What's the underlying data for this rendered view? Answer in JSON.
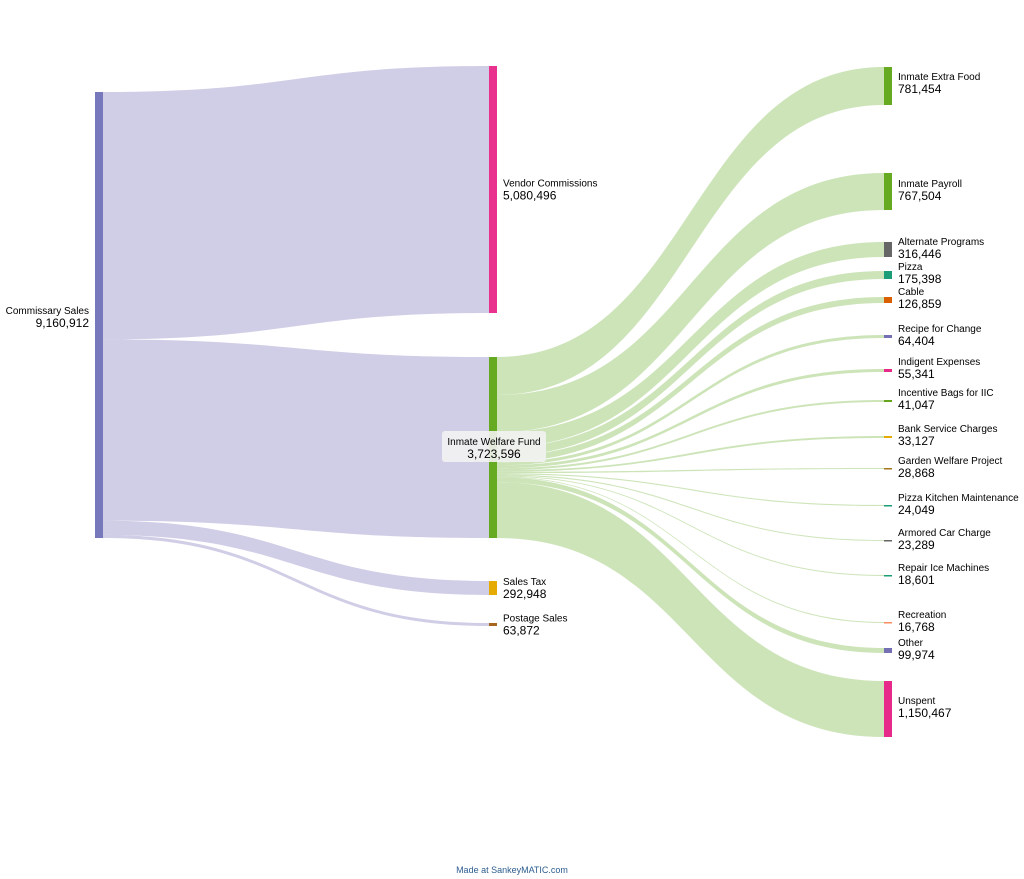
{
  "colors": {
    "flow_commissary": "#b7b2d8",
    "flow_welfare": "#acd28a",
    "label_box_bg": "#f2f2f2"
  },
  "nodes": [
    {
      "id": "commissary",
      "name": "Commissary Sales",
      "value": "9,160,912",
      "color": "#7777bb"
    },
    {
      "id": "vendor",
      "name": "Vendor Commissions",
      "value": "5,080,496",
      "color": "#e8328e"
    },
    {
      "id": "welfare",
      "name": "Inmate Welfare Fund",
      "value": "3,723,596",
      "color": "#66aa22"
    },
    {
      "id": "salestax",
      "name": "Sales Tax",
      "value": "292,948",
      "color": "#e6ab02"
    },
    {
      "id": "postage",
      "name": "Postage Sales",
      "value": "63,872",
      "color": "#a6661d"
    },
    {
      "id": "extrafood",
      "name": "Inmate Extra Food",
      "value": "781,454",
      "color": "#66aa22"
    },
    {
      "id": "payroll",
      "name": "Inmate Payroll",
      "value": "767,504",
      "color": "#66aa22"
    },
    {
      "id": "altprog",
      "name": "Alternate Programs",
      "value": "316,446",
      "color": "#666666"
    },
    {
      "id": "pizza",
      "name": "Pizza",
      "value": "175,398",
      "color": "#1b9e77"
    },
    {
      "id": "cable",
      "name": "Cable",
      "value": "126,859",
      "color": "#d95f02"
    },
    {
      "id": "recipe",
      "name": "Recipe for Change",
      "value": "64,404",
      "color": "#7570b3"
    },
    {
      "id": "indigent",
      "name": "Indigent Expenses",
      "value": "55,341",
      "color": "#e7298a"
    },
    {
      "id": "bags",
      "name": "Incentive Bags for IIC",
      "value": "41,047",
      "color": "#66a61e"
    },
    {
      "id": "bank",
      "name": "Bank Service Charges",
      "value": "33,127",
      "color": "#e6ab02"
    },
    {
      "id": "garden",
      "name": "Garden Welfare Project",
      "value": "28,868",
      "color": "#a6761d"
    },
    {
      "id": "pizzakitchen",
      "name": "Pizza Kitchen Maintenance",
      "value": "24,049",
      "color": "#1b9e77"
    },
    {
      "id": "armored",
      "name": "Armored Car Charge",
      "value": "23,289",
      "color": "#666666"
    },
    {
      "id": "icemachines",
      "name": "Repair Ice Machines",
      "value": "18,601",
      "color": "#1b9e77"
    },
    {
      "id": "recreation",
      "name": "Recreation",
      "value": "16,768",
      "color": "#fc8d62"
    },
    {
      "id": "other",
      "name": "Other",
      "value": "99,974",
      "color": "#7570b3"
    },
    {
      "id": "unspent",
      "name": "Unspent",
      "value": "1,150,467",
      "color": "#e7298a"
    }
  ],
  "flows": [
    {
      "from": "commissary",
      "to": "vendor",
      "value": 5080496
    },
    {
      "from": "commissary",
      "to": "welfare",
      "value": 3723596
    },
    {
      "from": "commissary",
      "to": "salestax",
      "value": 292948
    },
    {
      "from": "commissary",
      "to": "postage",
      "value": 63872
    },
    {
      "from": "welfare",
      "to": "extrafood",
      "value": 781454
    },
    {
      "from": "welfare",
      "to": "payroll",
      "value": 767504
    },
    {
      "from": "welfare",
      "to": "altprog",
      "value": 316446
    },
    {
      "from": "welfare",
      "to": "pizza",
      "value": 175398
    },
    {
      "from": "welfare",
      "to": "cable",
      "value": 126859
    },
    {
      "from": "welfare",
      "to": "recipe",
      "value": 64404
    },
    {
      "from": "welfare",
      "to": "indigent",
      "value": 55341
    },
    {
      "from": "welfare",
      "to": "bags",
      "value": 41047
    },
    {
      "from": "welfare",
      "to": "bank",
      "value": 33127
    },
    {
      "from": "welfare",
      "to": "garden",
      "value": 28868
    },
    {
      "from": "welfare",
      "to": "pizzakitchen",
      "value": 24049
    },
    {
      "from": "welfare",
      "to": "armored",
      "value": 23289
    },
    {
      "from": "welfare",
      "to": "icemachines",
      "value": 18601
    },
    {
      "from": "welfare",
      "to": "recreation",
      "value": 16768
    },
    {
      "from": "welfare",
      "to": "other",
      "value": 99974
    },
    {
      "from": "welfare",
      "to": "unspent",
      "value": 1150467
    }
  ],
  "footer": {
    "text": "Made at SankeyMATIC.com"
  }
}
